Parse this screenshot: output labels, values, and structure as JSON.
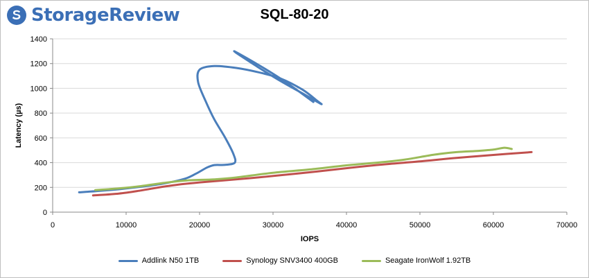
{
  "brand": {
    "logo_text": "StorageReview",
    "logo_icon": "storage-review-logo-icon",
    "logo_color": "#3b6fb6"
  },
  "chart_data": {
    "type": "line",
    "title": "SQL-80-20",
    "xlabel": "IOPS",
    "ylabel": "Latency (µs)",
    "xlim": [
      0,
      70000
    ],
    "ylim": [
      0,
      1400
    ],
    "x_ticks": [
      0,
      10000,
      20000,
      30000,
      40000,
      50000,
      60000,
      70000
    ],
    "y_ticks": [
      0,
      200,
      400,
      600,
      800,
      1000,
      1200,
      1400
    ],
    "grid": {
      "horizontal": true,
      "vertical": false
    },
    "legend": "bottom",
    "series": [
      {
        "name": "Addlink N50 1TB",
        "color": "#4a7ebb",
        "points": [
          [
            3600,
            160
          ],
          [
            6000,
            170
          ],
          [
            9000,
            185
          ],
          [
            12000,
            205
          ],
          [
            15000,
            230
          ],
          [
            18000,
            270
          ],
          [
            19500,
            310
          ],
          [
            21000,
            360
          ],
          [
            22000,
            380
          ],
          [
            23500,
            382
          ],
          [
            24800,
            400
          ],
          [
            24600,
            470
          ],
          [
            23500,
            600
          ],
          [
            22000,
            750
          ],
          [
            20800,
            900
          ],
          [
            19800,
            1050
          ],
          [
            20000,
            1150
          ],
          [
            22000,
            1180
          ],
          [
            25000,
            1165
          ],
          [
            28000,
            1130
          ],
          [
            31000,
            1080
          ],
          [
            34000,
            990
          ],
          [
            36000,
            900
          ],
          [
            36500,
            875
          ],
          [
            34000,
            960
          ],
          [
            31000,
            1060
          ],
          [
            28000,
            1170
          ],
          [
            24700,
            1300
          ],
          [
            28000,
            1190
          ],
          [
            31500,
            1060
          ],
          [
            35500,
            890
          ]
        ]
      },
      {
        "name": "Synology SNV3400 400GB",
        "color": "#c0504d",
        "points": [
          [
            5500,
            135
          ],
          [
            9000,
            150
          ],
          [
            12000,
            175
          ],
          [
            15000,
            205
          ],
          [
            17500,
            225
          ],
          [
            20000,
            240
          ],
          [
            23000,
            255
          ],
          [
            27000,
            275
          ],
          [
            31000,
            298
          ],
          [
            36000,
            328
          ],
          [
            40000,
            355
          ],
          [
            45000,
            385
          ],
          [
            50000,
            410
          ],
          [
            55000,
            438
          ],
          [
            60000,
            462
          ],
          [
            65200,
            485
          ]
        ]
      },
      {
        "name": "Seagate IronWolf 1.92TB",
        "color": "#9bbb59",
        "points": [
          [
            5800,
            178
          ],
          [
            9000,
            192
          ],
          [
            12000,
            210
          ],
          [
            15000,
            235
          ],
          [
            18000,
            255
          ],
          [
            22000,
            265
          ],
          [
            25000,
            280
          ],
          [
            30000,
            318
          ],
          [
            35000,
            345
          ],
          [
            40000,
            378
          ],
          [
            45000,
            405
          ],
          [
            48000,
            425
          ],
          [
            52000,
            465
          ],
          [
            55000,
            485
          ],
          [
            58000,
            495
          ],
          [
            60000,
            505
          ],
          [
            61500,
            520
          ],
          [
            62500,
            510
          ]
        ]
      }
    ]
  }
}
